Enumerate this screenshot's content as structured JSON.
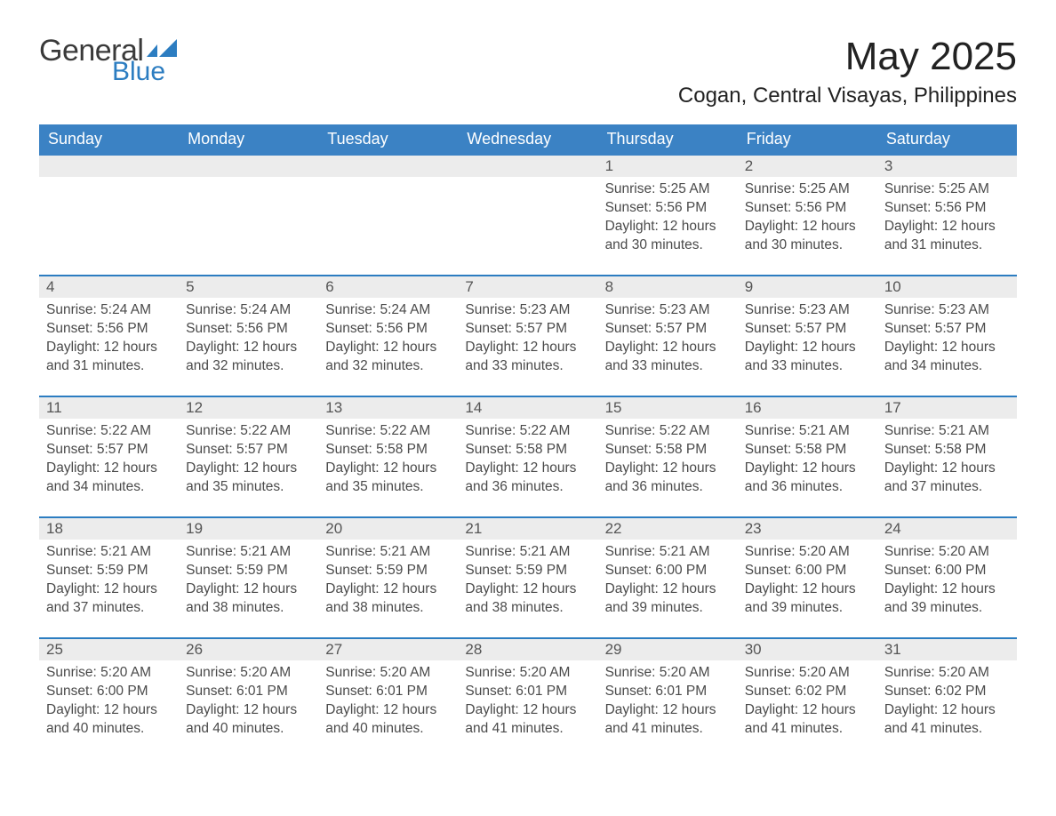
{
  "brand": {
    "line1": "General",
    "line2": "Blue",
    "mark_color": "#2c7dc1",
    "text_gray": "#3a3a3a"
  },
  "header": {
    "title": "May 2025",
    "location": "Cogan, Central Visayas, Philippines"
  },
  "styling": {
    "header_blue": "#3b82c4",
    "row_border": "#2c7dc1",
    "row_header_bg": "#ececec",
    "background": "#ffffff",
    "text_dark": "#333333",
    "text_gray": "#4a4a4a",
    "month_title_fontsize_pt": 33,
    "location_fontsize_pt": 18,
    "weekday_fontsize_pt": 14,
    "daynum_fontsize_pt": 13,
    "body_fontsize_pt": 12
  },
  "calendar": {
    "type": "table",
    "weekdays": [
      "Sunday",
      "Monday",
      "Tuesday",
      "Wednesday",
      "Thursday",
      "Friday",
      "Saturday"
    ],
    "weeks": [
      [
        {
          "blank": true
        },
        {
          "blank": true
        },
        {
          "blank": true
        },
        {
          "blank": true
        },
        {
          "day": "1",
          "sunrise": "5:25 AM",
          "sunset": "5:56 PM",
          "daylight": "12 hours and 30 minutes."
        },
        {
          "day": "2",
          "sunrise": "5:25 AM",
          "sunset": "5:56 PM",
          "daylight": "12 hours and 30 minutes."
        },
        {
          "day": "3",
          "sunrise": "5:25 AM",
          "sunset": "5:56 PM",
          "daylight": "12 hours and 31 minutes."
        }
      ],
      [
        {
          "day": "4",
          "sunrise": "5:24 AM",
          "sunset": "5:56 PM",
          "daylight": "12 hours and 31 minutes."
        },
        {
          "day": "5",
          "sunrise": "5:24 AM",
          "sunset": "5:56 PM",
          "daylight": "12 hours and 32 minutes."
        },
        {
          "day": "6",
          "sunrise": "5:24 AM",
          "sunset": "5:56 PM",
          "daylight": "12 hours and 32 minutes."
        },
        {
          "day": "7",
          "sunrise": "5:23 AM",
          "sunset": "5:57 PM",
          "daylight": "12 hours and 33 minutes."
        },
        {
          "day": "8",
          "sunrise": "5:23 AM",
          "sunset": "5:57 PM",
          "daylight": "12 hours and 33 minutes."
        },
        {
          "day": "9",
          "sunrise": "5:23 AM",
          "sunset": "5:57 PM",
          "daylight": "12 hours and 33 minutes."
        },
        {
          "day": "10",
          "sunrise": "5:23 AM",
          "sunset": "5:57 PM",
          "daylight": "12 hours and 34 minutes."
        }
      ],
      [
        {
          "day": "11",
          "sunrise": "5:22 AM",
          "sunset": "5:57 PM",
          "daylight": "12 hours and 34 minutes."
        },
        {
          "day": "12",
          "sunrise": "5:22 AM",
          "sunset": "5:57 PM",
          "daylight": "12 hours and 35 minutes."
        },
        {
          "day": "13",
          "sunrise": "5:22 AM",
          "sunset": "5:58 PM",
          "daylight": "12 hours and 35 minutes."
        },
        {
          "day": "14",
          "sunrise": "5:22 AM",
          "sunset": "5:58 PM",
          "daylight": "12 hours and 36 minutes."
        },
        {
          "day": "15",
          "sunrise": "5:22 AM",
          "sunset": "5:58 PM",
          "daylight": "12 hours and 36 minutes."
        },
        {
          "day": "16",
          "sunrise": "5:21 AM",
          "sunset": "5:58 PM",
          "daylight": "12 hours and 36 minutes."
        },
        {
          "day": "17",
          "sunrise": "5:21 AM",
          "sunset": "5:58 PM",
          "daylight": "12 hours and 37 minutes."
        }
      ],
      [
        {
          "day": "18",
          "sunrise": "5:21 AM",
          "sunset": "5:59 PM",
          "daylight": "12 hours and 37 minutes."
        },
        {
          "day": "19",
          "sunrise": "5:21 AM",
          "sunset": "5:59 PM",
          "daylight": "12 hours and 38 minutes."
        },
        {
          "day": "20",
          "sunrise": "5:21 AM",
          "sunset": "5:59 PM",
          "daylight": "12 hours and 38 minutes."
        },
        {
          "day": "21",
          "sunrise": "5:21 AM",
          "sunset": "5:59 PM",
          "daylight": "12 hours and 38 minutes."
        },
        {
          "day": "22",
          "sunrise": "5:21 AM",
          "sunset": "6:00 PM",
          "daylight": "12 hours and 39 minutes."
        },
        {
          "day": "23",
          "sunrise": "5:20 AM",
          "sunset": "6:00 PM",
          "daylight": "12 hours and 39 minutes."
        },
        {
          "day": "24",
          "sunrise": "5:20 AM",
          "sunset": "6:00 PM",
          "daylight": "12 hours and 39 minutes."
        }
      ],
      [
        {
          "day": "25",
          "sunrise": "5:20 AM",
          "sunset": "6:00 PM",
          "daylight": "12 hours and 40 minutes."
        },
        {
          "day": "26",
          "sunrise": "5:20 AM",
          "sunset": "6:01 PM",
          "daylight": "12 hours and 40 minutes."
        },
        {
          "day": "27",
          "sunrise": "5:20 AM",
          "sunset": "6:01 PM",
          "daylight": "12 hours and 40 minutes."
        },
        {
          "day": "28",
          "sunrise": "5:20 AM",
          "sunset": "6:01 PM",
          "daylight": "12 hours and 41 minutes."
        },
        {
          "day": "29",
          "sunrise": "5:20 AM",
          "sunset": "6:01 PM",
          "daylight": "12 hours and 41 minutes."
        },
        {
          "day": "30",
          "sunrise": "5:20 AM",
          "sunset": "6:02 PM",
          "daylight": "12 hours and 41 minutes."
        },
        {
          "day": "31",
          "sunrise": "5:20 AM",
          "sunset": "6:02 PM",
          "daylight": "12 hours and 41 minutes."
        }
      ]
    ],
    "labels": {
      "sunrise_prefix": "Sunrise: ",
      "sunset_prefix": "Sunset: ",
      "daylight_prefix": "Daylight: "
    }
  }
}
